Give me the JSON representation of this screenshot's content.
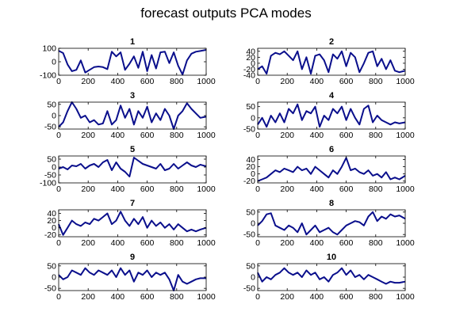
{
  "figure": {
    "title": "forecast outputs PCA modes"
  },
  "style": {
    "line_color": "#0a0f8c",
    "axes_color": "#000000",
    "background": "#ffffff"
  },
  "chart_data": [
    {
      "type": "line",
      "title": "1",
      "xlim": [
        0,
        1000
      ],
      "ylim": [
        -100,
        100
      ],
      "xticks": [
        0,
        200,
        400,
        600,
        800,
        1000
      ],
      "yticks": [
        -100,
        0,
        100
      ],
      "x": [
        0,
        30,
        60,
        90,
        120,
        150,
        180,
        210,
        240,
        270,
        300,
        330,
        360,
        390,
        420,
        450,
        480,
        510,
        540,
        570,
        600,
        630,
        660,
        690,
        720,
        750,
        780,
        810,
        840,
        870,
        900,
        930,
        960,
        1000
      ],
      "y": [
        82,
        65,
        -20,
        -70,
        -60,
        10,
        -80,
        -60,
        -40,
        -35,
        -40,
        -55,
        75,
        40,
        70,
        -60,
        -15,
        40,
        -45,
        75,
        -70,
        50,
        -50,
        70,
        75,
        -10,
        70,
        -30,
        -95,
        10,
        60,
        75,
        80,
        88
      ]
    },
    {
      "type": "line",
      "title": "2",
      "xlim": [
        0,
        1000
      ],
      "ylim": [
        -40,
        50
      ],
      "xticks": [
        0,
        200,
        400,
        600,
        800,
        1000
      ],
      "yticks": [
        -40,
        -20,
        0,
        20,
        40
      ],
      "x": [
        0,
        30,
        60,
        90,
        120,
        150,
        180,
        210,
        240,
        270,
        300,
        330,
        360,
        390,
        420,
        450,
        480,
        510,
        540,
        570,
        600,
        630,
        660,
        690,
        720,
        750,
        780,
        810,
        840,
        870,
        900,
        930,
        960,
        1000
      ],
      "y": [
        -20,
        -10,
        -35,
        25,
        35,
        30,
        40,
        25,
        10,
        40,
        -20,
        20,
        -35,
        25,
        30,
        10,
        -30,
        30,
        15,
        40,
        -10,
        35,
        20,
        -30,
        0,
        35,
        40,
        -10,
        15,
        -20,
        10,
        -25,
        -30,
        -25
      ]
    },
    {
      "type": "line",
      "title": "3",
      "xlim": [
        0,
        1000
      ],
      "ylim": [
        -60,
        60
      ],
      "xticks": [
        0,
        200,
        400,
        600,
        800,
        1000
      ],
      "yticks": [
        -50,
        0,
        50
      ],
      "x": [
        0,
        30,
        60,
        90,
        120,
        150,
        180,
        210,
        240,
        270,
        300,
        330,
        360,
        390,
        420,
        450,
        480,
        510,
        540,
        570,
        600,
        630,
        660,
        690,
        720,
        750,
        780,
        810,
        840,
        870,
        900,
        930,
        960,
        1000
      ],
      "y": [
        -50,
        -30,
        20,
        60,
        30,
        -10,
        0,
        -30,
        -20,
        -40,
        -35,
        20,
        -40,
        -20,
        45,
        -10,
        30,
        -40,
        20,
        -10,
        40,
        -30,
        10,
        -20,
        30,
        0,
        -60,
        0,
        20,
        55,
        30,
        10,
        -10,
        -5
      ]
    },
    {
      "type": "line",
      "title": "4",
      "xlim": [
        0,
        1000
      ],
      "ylim": [
        -50,
        70
      ],
      "xticks": [
        0,
        200,
        400,
        600,
        800,
        1000
      ],
      "yticks": [
        -50,
        0,
        50
      ],
      "x": [
        0,
        30,
        60,
        90,
        120,
        150,
        180,
        210,
        240,
        270,
        300,
        330,
        360,
        390,
        420,
        450,
        480,
        510,
        540,
        570,
        600,
        630,
        660,
        690,
        720,
        750,
        780,
        810,
        840,
        870,
        900,
        930,
        960,
        1000
      ],
      "y": [
        -30,
        0,
        -40,
        10,
        -20,
        20,
        -20,
        40,
        20,
        60,
        -10,
        30,
        20,
        50,
        -40,
        10,
        -10,
        40,
        20,
        50,
        -10,
        40,
        0,
        -30,
        40,
        55,
        -20,
        10,
        -10,
        -20,
        -30,
        -20,
        -25,
        -20
      ]
    },
    {
      "type": "line",
      "title": "5",
      "xlim": [
        0,
        1000
      ],
      "ylim": [
        -100,
        70
      ],
      "xticks": [
        0,
        200,
        400,
        600,
        800,
        1000
      ],
      "yticks": [
        -100,
        -50,
        0,
        50
      ],
      "x": [
        0,
        30,
        60,
        90,
        120,
        150,
        180,
        210,
        240,
        270,
        300,
        330,
        360,
        390,
        420,
        450,
        480,
        510,
        540,
        570,
        600,
        630,
        660,
        690,
        720,
        750,
        780,
        810,
        840,
        870,
        900,
        930,
        960,
        1000
      ],
      "y": [
        -10,
        0,
        -15,
        10,
        5,
        20,
        -10,
        10,
        20,
        0,
        30,
        45,
        -20,
        30,
        -10,
        -30,
        -60,
        60,
        40,
        20,
        10,
        0,
        -10,
        20,
        -20,
        -10,
        20,
        -10,
        10,
        30,
        10,
        0,
        15,
        5
      ]
    },
    {
      "type": "line",
      "title": "6",
      "xlim": [
        0,
        1000
      ],
      "ylim": [
        -25,
        50
      ],
      "xticks": [
        0,
        200,
        400,
        600,
        800,
        1000
      ],
      "yticks": [
        -20,
        0,
        20,
        40
      ],
      "x": [
        0,
        30,
        60,
        90,
        120,
        150,
        180,
        210,
        240,
        270,
        300,
        330,
        360,
        390,
        420,
        450,
        480,
        510,
        540,
        570,
        600,
        630,
        660,
        690,
        720,
        750,
        780,
        810,
        840,
        870,
        900,
        930,
        960,
        1000
      ],
      "y": [
        -20,
        -15,
        -10,
        0,
        10,
        5,
        15,
        10,
        5,
        20,
        10,
        15,
        0,
        20,
        10,
        0,
        -10,
        10,
        0,
        20,
        45,
        10,
        15,
        5,
        0,
        10,
        -5,
        0,
        -10,
        5,
        -15,
        -10,
        -15,
        -5
      ]
    },
    {
      "type": "line",
      "title": "7",
      "xlim": [
        0,
        1000
      ],
      "ylim": [
        -25,
        50
      ],
      "xticks": [
        0,
        200,
        400,
        600,
        800,
        1000
      ],
      "yticks": [
        -20,
        0,
        20,
        40
      ],
      "x": [
        0,
        30,
        60,
        90,
        120,
        150,
        180,
        210,
        240,
        270,
        300,
        330,
        360,
        390,
        420,
        450,
        480,
        510,
        540,
        570,
        600,
        630,
        660,
        690,
        720,
        750,
        780,
        810,
        840,
        870,
        900,
        930,
        960,
        1000
      ],
      "y": [
        10,
        -20,
        0,
        20,
        10,
        5,
        15,
        10,
        25,
        20,
        30,
        40,
        10,
        20,
        45,
        20,
        5,
        25,
        10,
        30,
        0,
        20,
        5,
        15,
        0,
        10,
        -5,
        10,
        0,
        -10,
        -5,
        -10,
        -5,
        0
      ]
    },
    {
      "type": "line",
      "title": "8",
      "xlim": [
        0,
        1000
      ],
      "ylim": [
        -60,
        60
      ],
      "xticks": [
        0,
        200,
        400,
        600,
        800,
        1000
      ],
      "yticks": [
        -50,
        0,
        50
      ],
      "x": [
        0,
        30,
        60,
        90,
        120,
        150,
        180,
        210,
        240,
        270,
        300,
        330,
        360,
        390,
        420,
        450,
        480,
        510,
        540,
        570,
        600,
        630,
        660,
        690,
        720,
        750,
        780,
        810,
        840,
        870,
        900,
        930,
        960,
        1000
      ],
      "y": [
        -10,
        10,
        40,
        45,
        -10,
        -20,
        -30,
        -10,
        -20,
        -40,
        0,
        -50,
        -30,
        -10,
        -40,
        -30,
        -20,
        -40,
        -50,
        -30,
        -10,
        0,
        10,
        5,
        -10,
        30,
        50,
        10,
        30,
        20,
        40,
        30,
        35,
        20
      ]
    },
    {
      "type": "line",
      "title": "9",
      "xlim": [
        0,
        1000
      ],
      "ylim": [
        -60,
        60
      ],
      "xticks": [
        0,
        200,
        400,
        600,
        800,
        1000
      ],
      "yticks": [
        -50,
        0,
        50
      ],
      "x": [
        0,
        30,
        60,
        90,
        120,
        150,
        180,
        210,
        240,
        270,
        300,
        330,
        360,
        390,
        420,
        450,
        480,
        510,
        540,
        570,
        600,
        630,
        660,
        690,
        720,
        750,
        780,
        810,
        840,
        870,
        900,
        930,
        960,
        1000
      ],
      "y": [
        10,
        -10,
        0,
        30,
        20,
        10,
        40,
        20,
        10,
        30,
        20,
        10,
        30,
        0,
        40,
        10,
        30,
        -20,
        20,
        10,
        30,
        0,
        20,
        10,
        20,
        -10,
        -60,
        10,
        -20,
        -30,
        -20,
        -10,
        -5,
        -5
      ]
    },
    {
      "type": "line",
      "title": "10",
      "xlim": [
        0,
        1000
      ],
      "ylim": [
        -60,
        60
      ],
      "xticks": [
        0,
        200,
        400,
        600,
        800,
        1000
      ],
      "yticks": [
        -50,
        0,
        50
      ],
      "x": [
        0,
        30,
        60,
        90,
        120,
        150,
        180,
        210,
        240,
        270,
        300,
        330,
        360,
        390,
        420,
        450,
        480,
        510,
        540,
        570,
        600,
        630,
        660,
        690,
        720,
        750,
        780,
        810,
        840,
        870,
        900,
        930,
        960,
        1000
      ],
      "y": [
        20,
        -20,
        0,
        -10,
        10,
        20,
        40,
        20,
        10,
        20,
        0,
        30,
        10,
        20,
        -10,
        0,
        -20,
        10,
        20,
        40,
        10,
        30,
        0,
        10,
        -10,
        10,
        0,
        -10,
        -20,
        -30,
        -20,
        -25,
        -25,
        -20
      ]
    }
  ]
}
